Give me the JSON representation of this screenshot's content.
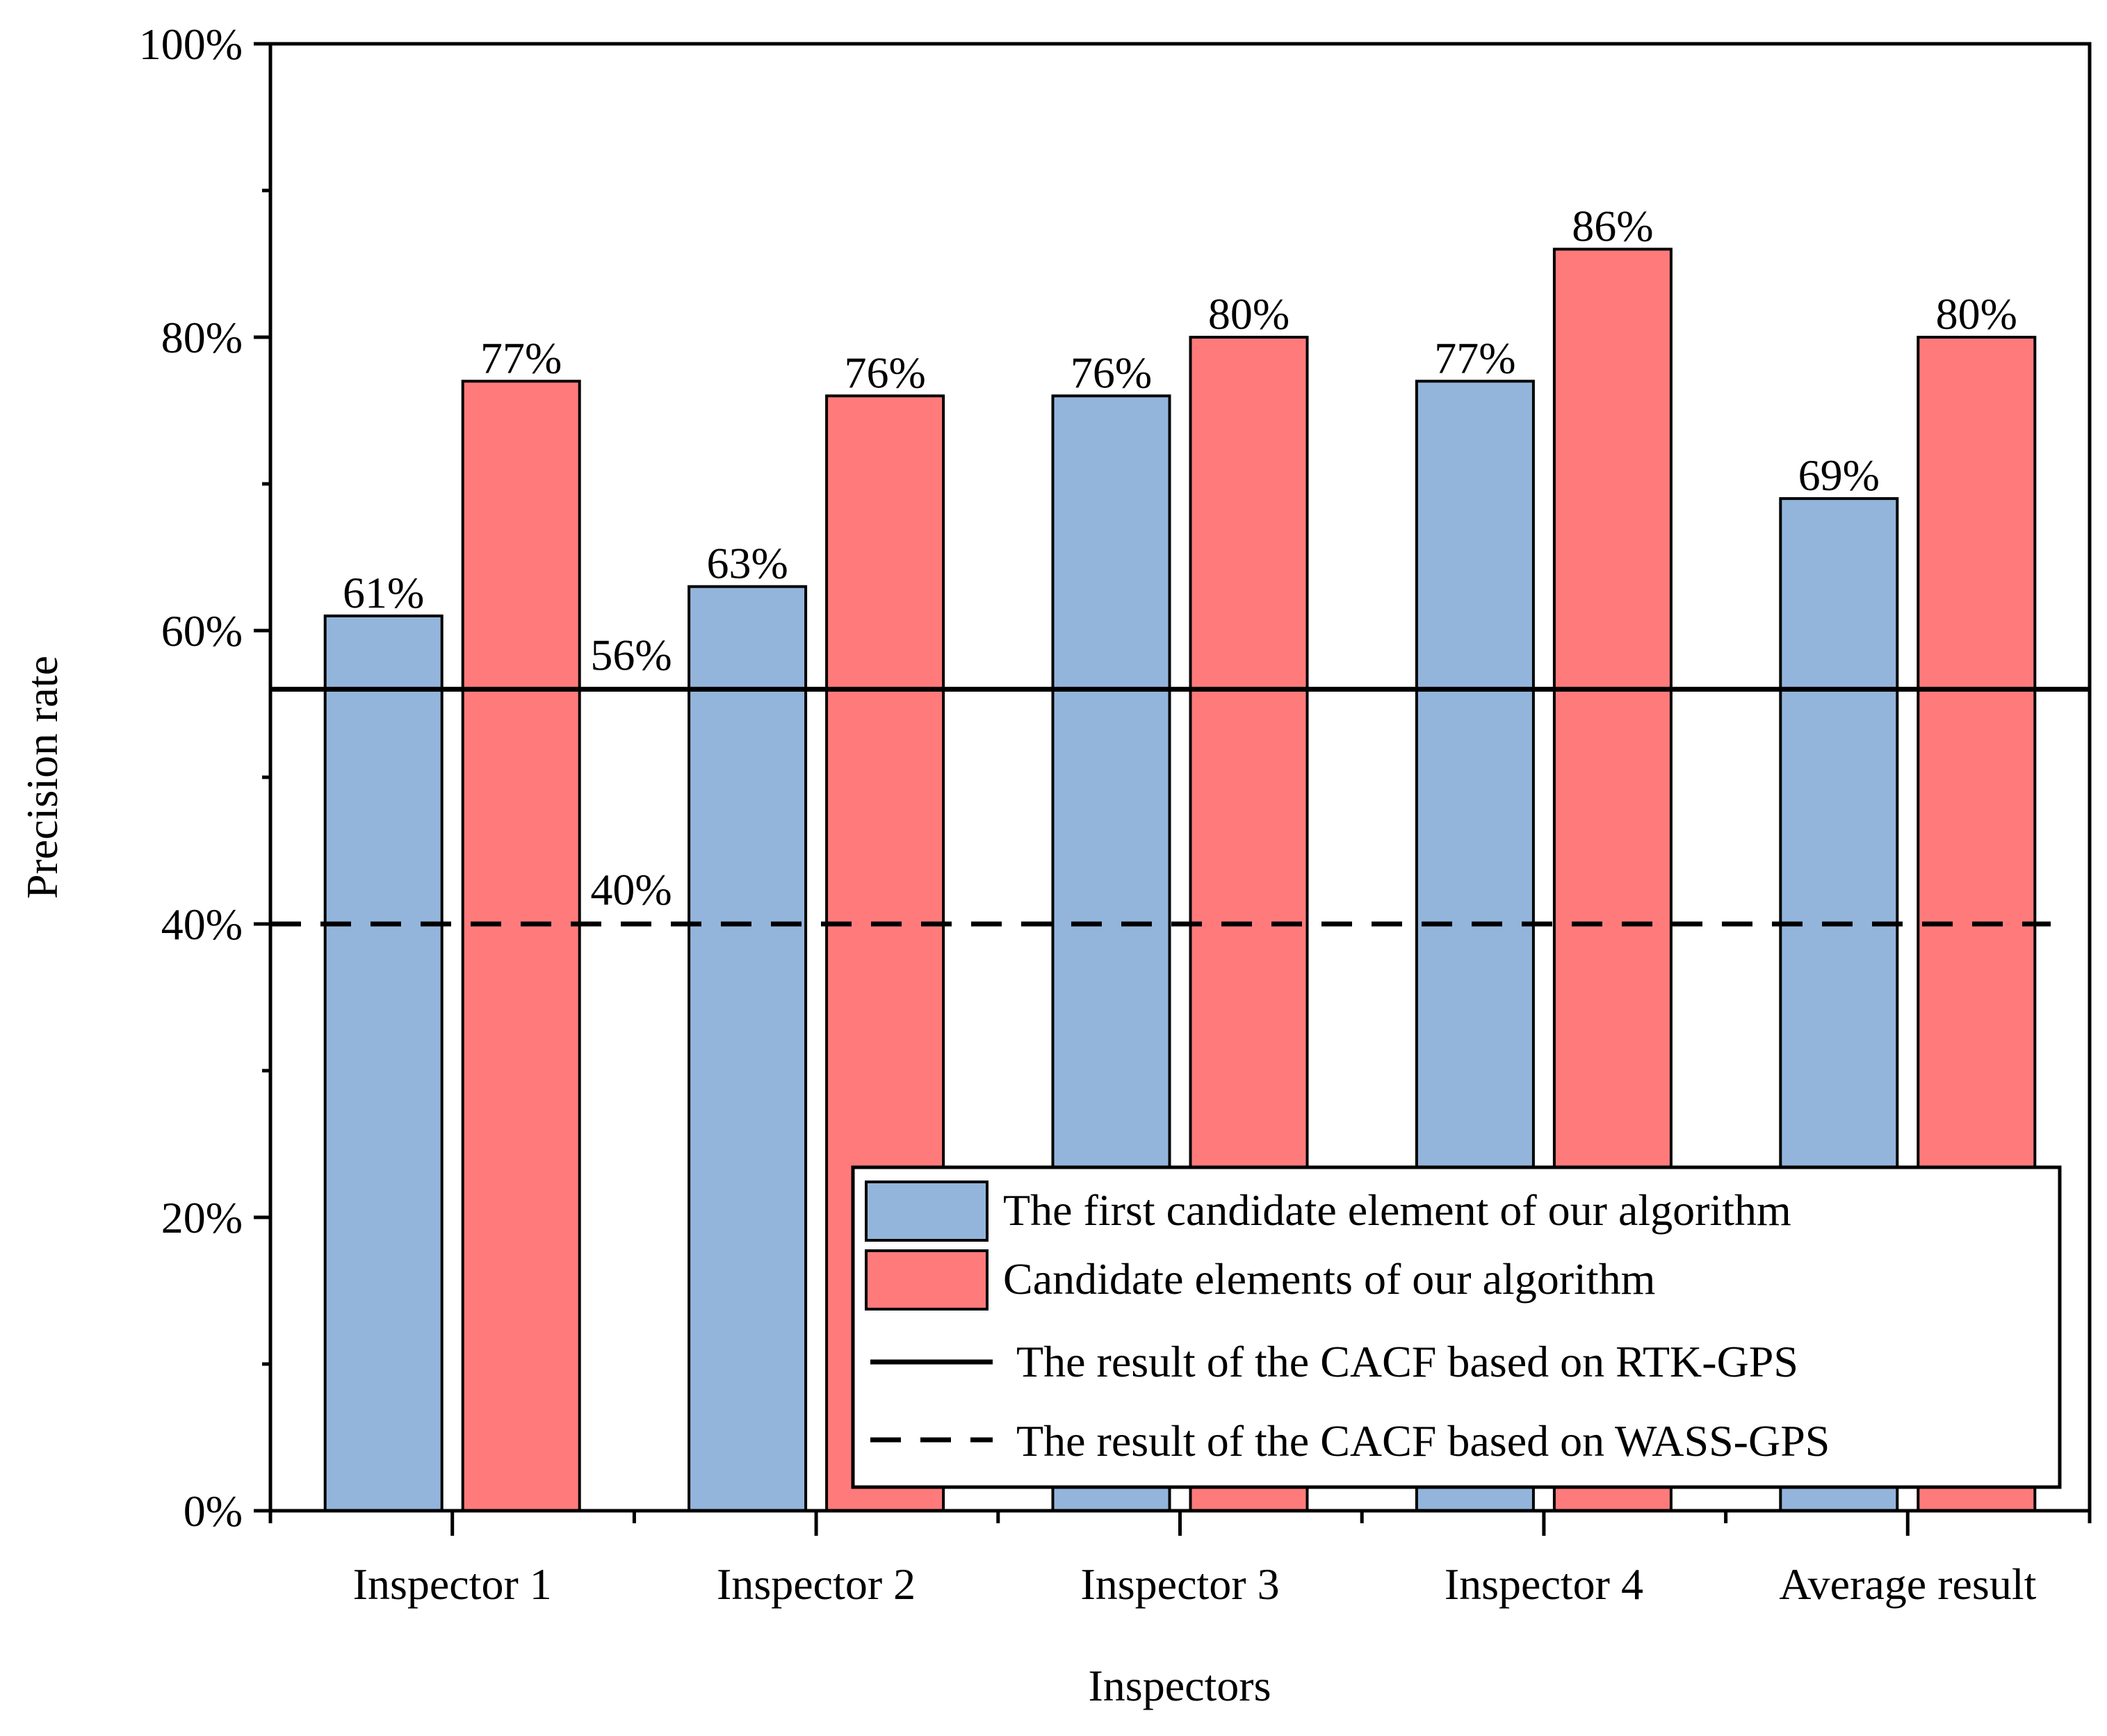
{
  "chart_data": {
    "type": "bar",
    "title": "",
    "xlabel": "Inspectors",
    "ylabel": "Precision rate",
    "ylim": [
      0,
      100
    ],
    "yticks": [
      {
        "value": 0,
        "label": "0%"
      },
      {
        "value": 20,
        "label": "20%"
      },
      {
        "value": 40,
        "label": "40%"
      },
      {
        "value": 60,
        "label": "60%"
      },
      {
        "value": 80,
        "label": "80%"
      },
      {
        "value": 100,
        "label": "100%"
      }
    ],
    "categories": [
      "Inspector 1",
      "Inspector 2",
      "Inspector 3",
      "Inspector 4",
      "Average result"
    ],
    "series": [
      {
        "name": "The first candidate element of our algorithm",
        "color": "#93B5DB",
        "values": [
          61,
          63,
          76,
          77,
          69
        ],
        "labels": [
          "61%",
          "63%",
          "76%",
          "77%",
          "69%"
        ]
      },
      {
        "name": "Candidate elements of our algorithm",
        "color": "#FF7B7B",
        "values": [
          77,
          76,
          80,
          86,
          80
        ],
        "labels": [
          "77%",
          "76%",
          "80%",
          "86%",
          "80%"
        ]
      }
    ],
    "reference_lines": [
      {
        "name": "The result of the CACF based on RTK-GPS",
        "value": 56,
        "label": "56%",
        "style": "solid"
      },
      {
        "name": "The result of the CACF based on WASS-GPS",
        "value": 40,
        "label": "40%",
        "style": "dashed"
      }
    ],
    "legend": "bottom-right"
  }
}
